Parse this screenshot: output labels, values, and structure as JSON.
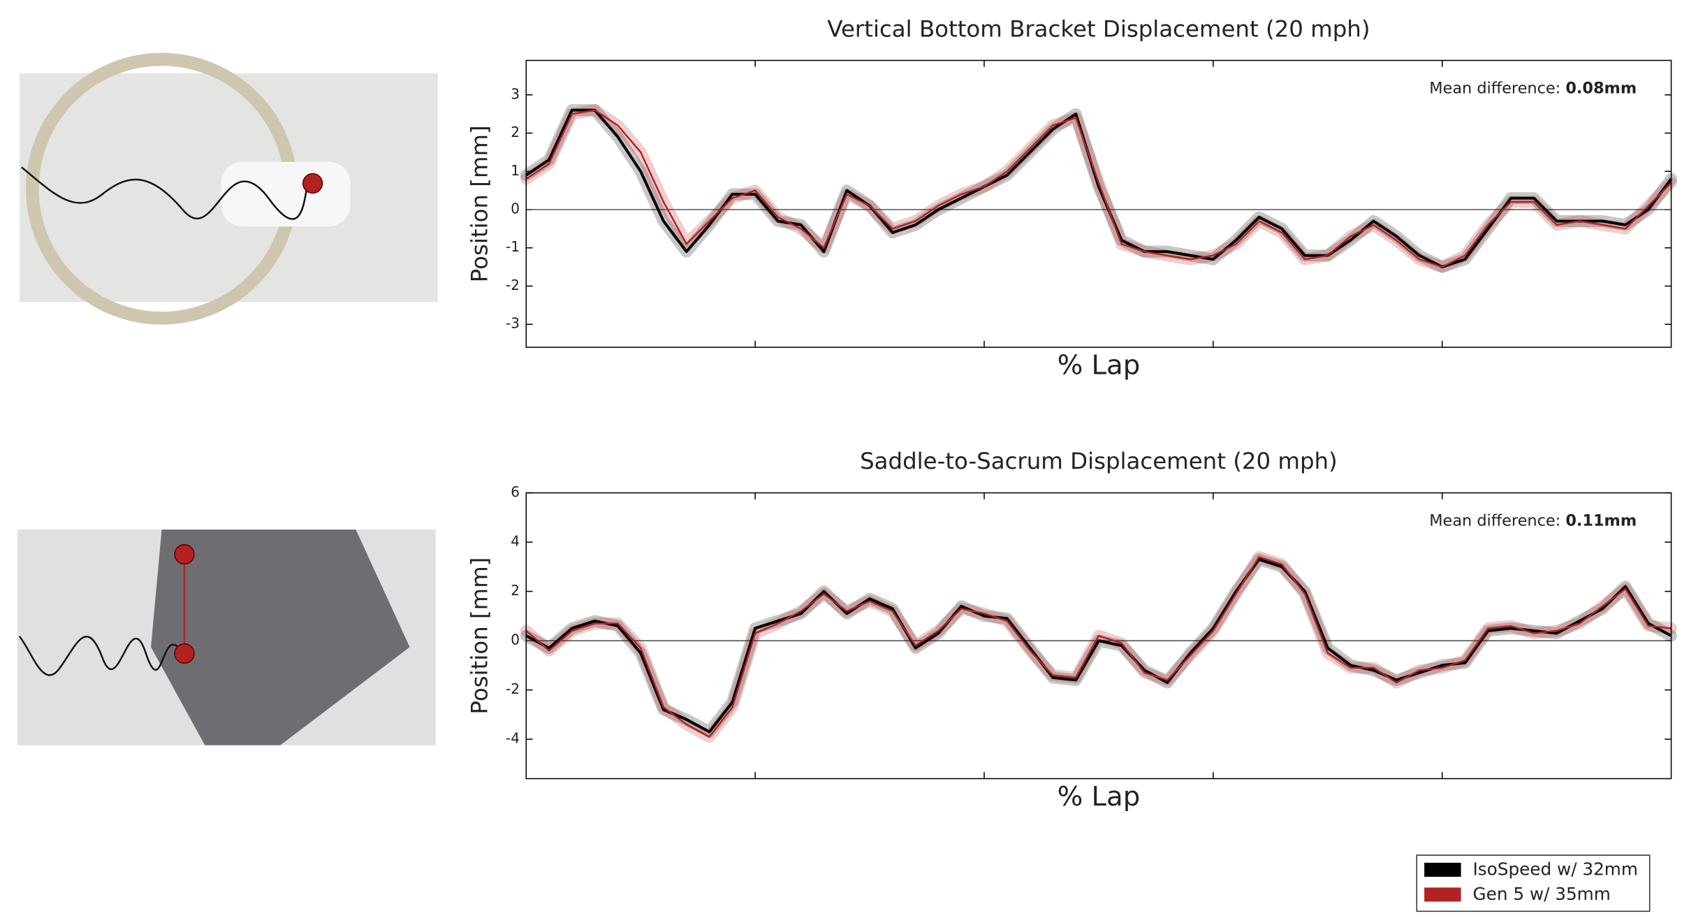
{
  "chart_data": [
    {
      "type": "line",
      "title": "Vertical Bottom Bracket Displacement (20 mph)",
      "x_label": "% Lap",
      "y_label": "Position [mm]",
      "annotation": "Mean difference:",
      "annotation_value": "0.08mm",
      "x": [
        0,
        2,
        4,
        6,
        8,
        10,
        12,
        14,
        16,
        18,
        20,
        22,
        24,
        26,
        28,
        30,
        32,
        34,
        36,
        38,
        40,
        42,
        44,
        46,
        48,
        50,
        52,
        54,
        56,
        58,
        60,
        62,
        64,
        66,
        68,
        70,
        72,
        74,
        76,
        78,
        80,
        82,
        84,
        86,
        88,
        90,
        92,
        94,
        96,
        98,
        100
      ],
      "xlim": [
        0,
        100
      ],
      "xticks": [
        20,
        40,
        60,
        80
      ],
      "ylim": [
        -3.6,
        3.9
      ],
      "yticks": [
        -3,
        -2,
        -1,
        0,
        1,
        2,
        3
      ],
      "zero_line": true,
      "series": [
        {
          "name": "IsoSpeed w/ 32mm",
          "color": "#000000",
          "values": [
            0.9,
            1.3,
            2.6,
            2.6,
            1.9,
            1.0,
            -0.3,
            -1.1,
            -0.4,
            0.4,
            0.4,
            -0.3,
            -0.4,
            -1.1,
            0.5,
            0.1,
            -0.6,
            -0.4,
            0.0,
            0.3,
            0.6,
            0.9,
            1.5,
            2.1,
            2.5,
            0.6,
            -0.8,
            -1.1,
            -1.1,
            -1.2,
            -1.3,
            -0.8,
            -0.2,
            -0.5,
            -1.2,
            -1.2,
            -0.8,
            -0.3,
            -0.7,
            -1.2,
            -1.5,
            -1.3,
            -0.5,
            0.3,
            0.3,
            -0.3,
            -0.3,
            -0.3,
            -0.4,
            0.0,
            0.8
          ]
        },
        {
          "name": "Gen 5 w/ 35mm",
          "color": "#b22222",
          "values": [
            0.8,
            1.2,
            2.5,
            2.6,
            2.2,
            1.5,
            0.2,
            -0.9,
            -0.3,
            0.3,
            0.5,
            -0.2,
            -0.5,
            -1.0,
            0.4,
            0.1,
            -0.5,
            -0.3,
            0.1,
            0.4,
            0.6,
            1.0,
            1.6,
            2.2,
            2.4,
            0.7,
            -0.9,
            -1.1,
            -1.2,
            -1.3,
            -1.2,
            -0.9,
            -0.3,
            -0.6,
            -1.3,
            -1.2,
            -0.7,
            -0.4,
            -0.8,
            -1.3,
            -1.5,
            -1.2,
            -0.4,
            0.2,
            0.2,
            -0.4,
            -0.3,
            -0.4,
            -0.5,
            0.1,
            0.7
          ]
        }
      ]
    },
    {
      "type": "line",
      "title": "Saddle-to-Sacrum Displacement (20 mph)",
      "x_label": "% Lap",
      "y_label": "Position [mm]",
      "annotation": "Mean difference:",
      "annotation_value": "0.11mm",
      "x": [
        0,
        2,
        4,
        6,
        8,
        10,
        12,
        14,
        16,
        18,
        20,
        22,
        24,
        26,
        28,
        30,
        32,
        34,
        36,
        38,
        40,
        42,
        44,
        46,
        48,
        50,
        52,
        54,
        56,
        58,
        60,
        62,
        64,
        66,
        68,
        70,
        72,
        74,
        76,
        78,
        80,
        82,
        84,
        86,
        88,
        90,
        92,
        94,
        96,
        98,
        100
      ],
      "xlim": [
        0,
        100
      ],
      "xticks": [
        20,
        40,
        60,
        80
      ],
      "ylim": [
        -5.6,
        6.0
      ],
      "yticks": [
        -4,
        -2,
        0,
        2,
        4,
        6
      ],
      "zero_line": true,
      "series": [
        {
          "name": "IsoSpeed w/ 32mm",
          "color": "#000000",
          "values": [
            0.2,
            -0.3,
            0.5,
            0.8,
            0.6,
            -0.5,
            -2.8,
            -3.2,
            -3.7,
            -2.5,
            0.5,
            0.8,
            1.1,
            2.0,
            1.1,
            1.7,
            1.3,
            -0.3,
            0.3,
            1.4,
            1.0,
            0.9,
            -0.3,
            -1.5,
            -1.6,
            0.0,
            -0.2,
            -1.2,
            -1.7,
            -0.5,
            0.5,
            2.0,
            3.3,
            3.0,
            2.0,
            -0.3,
            -1.0,
            -1.2,
            -1.6,
            -1.3,
            -1.0,
            -0.9,
            0.4,
            0.5,
            0.4,
            0.3,
            0.8,
            1.3,
            2.2,
            0.7,
            0.2
          ]
        },
        {
          "name": "Gen 5 w/ 35mm",
          "color": "#b22222",
          "values": [
            0.4,
            -0.4,
            0.4,
            0.7,
            0.7,
            -0.3,
            -2.7,
            -3.4,
            -3.9,
            -2.7,
            0.3,
            0.7,
            1.2,
            1.9,
            1.2,
            1.6,
            1.2,
            -0.2,
            0.4,
            1.3,
            1.1,
            0.8,
            -0.4,
            -1.4,
            -1.5,
            0.2,
            -0.1,
            -1.3,
            -1.6,
            -0.6,
            0.4,
            1.9,
            3.4,
            3.1,
            1.9,
            -0.5,
            -1.1,
            -1.1,
            -1.7,
            -1.2,
            -1.1,
            -0.8,
            0.5,
            0.6,
            0.3,
            0.4,
            0.7,
            1.4,
            2.1,
            0.6,
            0.5
          ]
        }
      ]
    }
  ]
}
